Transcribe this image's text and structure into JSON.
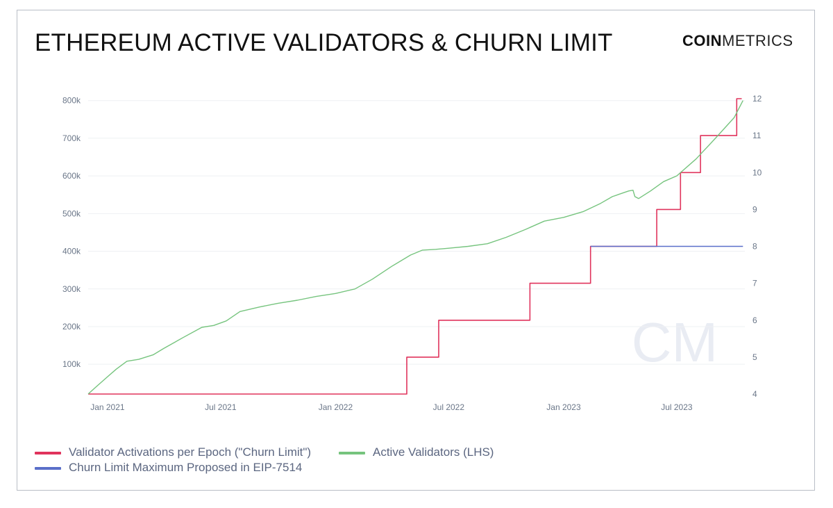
{
  "header": {
    "title": "ETHEREUM ACTIVE VALIDATORS & CHURN LIMIT",
    "logo_bold": "COIN",
    "logo_light": "METRICS"
  },
  "watermark": "CM",
  "colors": {
    "churn": "#e0335c",
    "active": "#76c47e",
    "eip": "#5a6fc9",
    "grid": "#eef0f3",
    "tick": "#6a7688"
  },
  "chart_data": {
    "type": "line",
    "title": "ETHEREUM ACTIVE VALIDATORS & CHURN LIMIT",
    "x_ticks": [
      "Jan 2021",
      "Jul 2021",
      "Jan 2022",
      "Jul 2022",
      "Jan 2023",
      "Jul 2023"
    ],
    "x_tick_dates": [
      "2021-01-01",
      "2021-07-01",
      "2022-01-01",
      "2022-07-01",
      "2023-01-01",
      "2023-07-01"
    ],
    "x_range": [
      "2020-12-01",
      "2023-10-18"
    ],
    "y_left": {
      "range": [
        21000,
        805000
      ],
      "ticks": [
        100000,
        200000,
        300000,
        400000,
        500000,
        600000,
        700000,
        800000
      ],
      "tick_labels": [
        "100k",
        "200k",
        "300k",
        "400k",
        "500k",
        "600k",
        "700k",
        "800k"
      ]
    },
    "y_right": {
      "range": [
        4,
        12
      ],
      "ticks": [
        4,
        5,
        6,
        7,
        8,
        9,
        10,
        11,
        12
      ],
      "tick_labels": [
        "4",
        "5",
        "6",
        "7",
        "8",
        "9",
        "10",
        "11",
        "12"
      ]
    },
    "grid": "horizontal",
    "legend_position": "bottom-left",
    "series": [
      {
        "name": "Validator Activations per Epoch (\"Churn Limit\")",
        "axis": "right",
        "step": true,
        "color": "#e0335c",
        "points": [
          [
            "2020-12-01",
            4
          ],
          [
            "2022-04-25",
            5
          ],
          [
            "2022-06-15",
            6
          ],
          [
            "2022-11-08",
            7
          ],
          [
            "2023-02-13",
            8
          ],
          [
            "2023-05-30",
            9
          ],
          [
            "2023-07-07",
            10
          ],
          [
            "2023-08-08",
            11
          ],
          [
            "2023-10-05",
            12
          ],
          [
            "2023-10-13",
            12
          ]
        ]
      },
      {
        "name": "Active Validators (LHS)",
        "axis": "left",
        "color": "#76c47e",
        "points": [
          [
            "2020-12-01",
            21000
          ],
          [
            "2020-12-15",
            42000
          ],
          [
            "2021-01-01",
            67000
          ],
          [
            "2021-01-15",
            87000
          ],
          [
            "2021-02-01",
            108000
          ],
          [
            "2021-02-20",
            113000
          ],
          [
            "2021-03-15",
            125000
          ],
          [
            "2021-04-01",
            142000
          ],
          [
            "2021-05-01",
            170000
          ],
          [
            "2021-06-01",
            198000
          ],
          [
            "2021-06-20",
            203000
          ],
          [
            "2021-07-10",
            215000
          ],
          [
            "2021-08-01",
            240000
          ],
          [
            "2021-09-01",
            252000
          ],
          [
            "2021-10-01",
            262000
          ],
          [
            "2021-11-01",
            270000
          ],
          [
            "2021-12-01",
            280000
          ],
          [
            "2022-01-01",
            288000
          ],
          [
            "2022-02-01",
            300000
          ],
          [
            "2022-03-01",
            326000
          ],
          [
            "2022-04-01",
            360000
          ],
          [
            "2022-05-01",
            390000
          ],
          [
            "2022-05-20",
            403000
          ],
          [
            "2022-06-10",
            405000
          ],
          [
            "2022-07-01",
            408000
          ],
          [
            "2022-08-01",
            413000
          ],
          [
            "2022-09-01",
            420000
          ],
          [
            "2022-10-01",
            437000
          ],
          [
            "2022-11-01",
            458000
          ],
          [
            "2022-12-01",
            480000
          ],
          [
            "2023-01-01",
            490000
          ],
          [
            "2023-02-01",
            505000
          ],
          [
            "2023-03-01",
            527000
          ],
          [
            "2023-03-20",
            545000
          ],
          [
            "2023-04-15",
            560000
          ],
          [
            "2023-04-22",
            562000
          ],
          [
            "2023-04-25",
            545000
          ],
          [
            "2023-05-01",
            540000
          ],
          [
            "2023-05-20",
            560000
          ],
          [
            "2023-06-10",
            585000
          ],
          [
            "2023-07-01",
            600000
          ],
          [
            "2023-08-01",
            645000
          ],
          [
            "2023-09-01",
            700000
          ],
          [
            "2023-10-01",
            755000
          ],
          [
            "2023-10-15",
            800000
          ]
        ]
      },
      {
        "name": "Churn Limit Maximum Proposed in EIP-7514",
        "axis": "right",
        "color": "#5a6fc9",
        "points": [
          [
            "2023-02-13",
            8
          ],
          [
            "2023-10-15",
            8
          ]
        ]
      }
    ]
  },
  "legend": {
    "churn": "Validator Activations per Epoch (\"Churn Limit\")",
    "active": "Active Validators (LHS)",
    "eip": "Churn Limit Maximum Proposed in EIP-7514"
  }
}
